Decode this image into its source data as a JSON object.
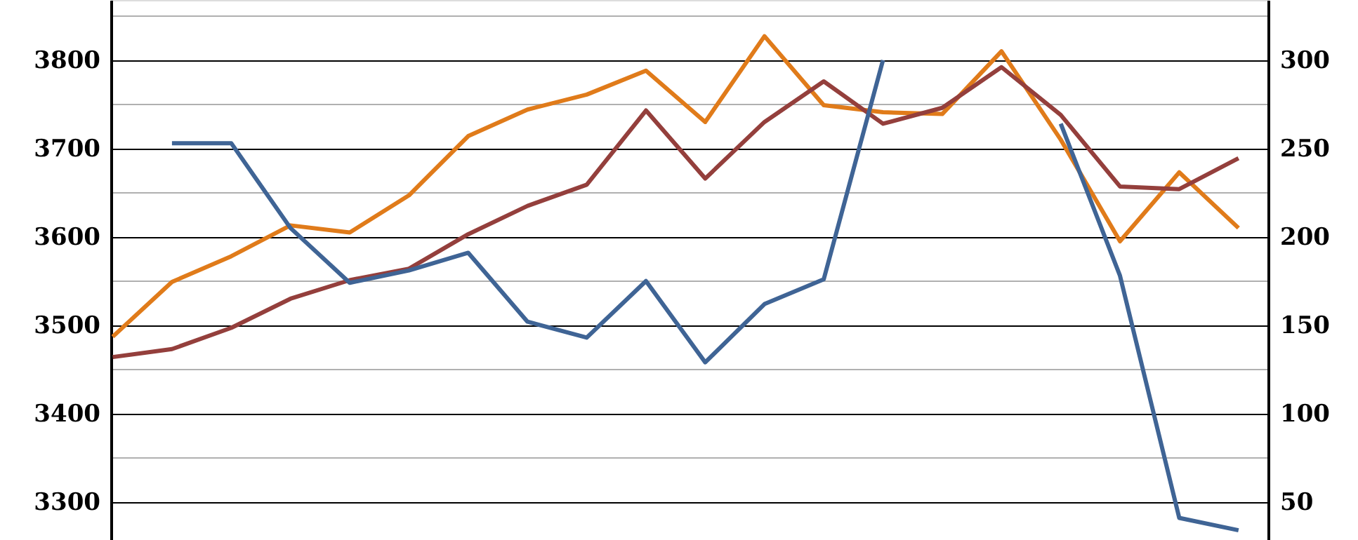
{
  "chart_data": {
    "type": "line",
    "categories": [
      null,
      null,
      null,
      null,
      null,
      null,
      null,
      null,
      null,
      null,
      null,
      null,
      null,
      null,
      null,
      null,
      null,
      null,
      null,
      null
    ],
    "series": [
      {
        "color": "#e07b1a",
        "values": [
          3487,
          3549,
          3578,
          3613,
          3605,
          3647,
          3714,
          3744,
          3761,
          3788,
          3730,
          3827,
          3749,
          3741,
          3739,
          3810,
          3710,
          3595,
          3673,
          3610
        ]
      },
      {
        "color": "#943f3c",
        "values": [
          3464,
          3473,
          3497,
          3530,
          3551,
          3564,
          3603,
          3635,
          3659,
          3743,
          3666,
          3730,
          3776,
          3728,
          3746,
          3792,
          3738,
          3657,
          3654,
          3689
        ]
      },
      {
        "color": "#3f6495",
        "axis": "y2",
        "values": [
          null,
          253,
          253,
          205,
          174,
          181,
          191,
          152,
          143,
          175,
          129,
          162,
          176,
          300,
          null,
          null,
          264,
          178,
          41,
          34
        ]
      }
    ],
    "ylim": [
      3257,
      3868
    ],
    "yticks": [
      3300,
      {
        "value": 3350,
        "label": null
      },
      3400,
      {
        "value": 3450,
        "label": null
      },
      3500,
      {
        "value": 3550,
        "label": null
      },
      3600,
      {
        "value": 3650,
        "label": null
      },
      3700,
      {
        "value": 3750,
        "label": null
      },
      3800,
      {
        "value": 3850,
        "label": null
      }
    ],
    "y2lim": [
      28.5,
      334
    ],
    "y2ticks": [
      50,
      100,
      150,
      200,
      250,
      300
    ],
    "grid": "y",
    "tick_labels": "y",
    "marker": "none",
    "line_style": "solid"
  }
}
